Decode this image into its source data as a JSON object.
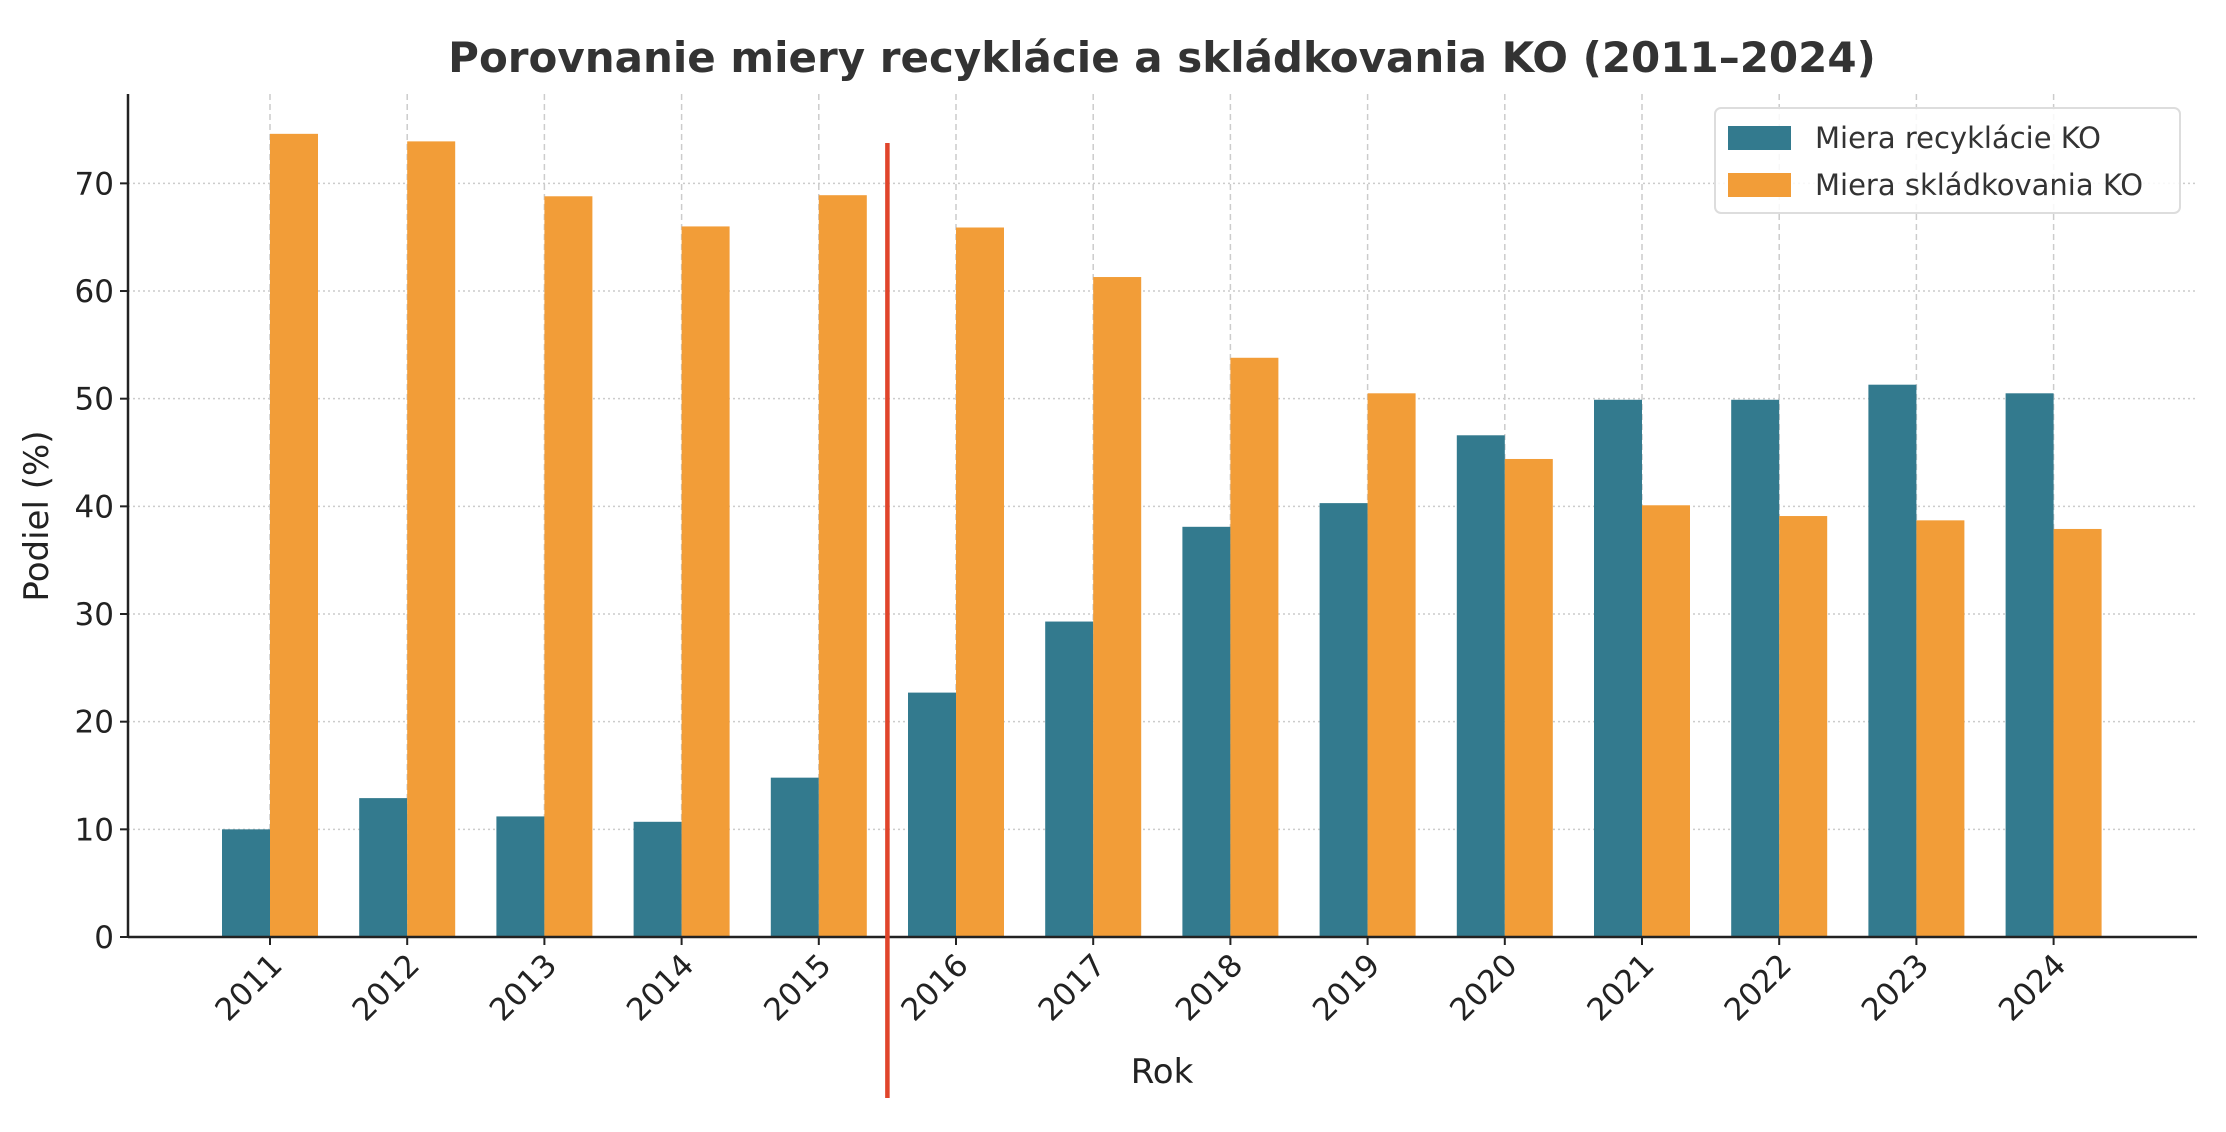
{
  "chart_data": {
    "type": "bar",
    "title": "Porovnanie miery recyklácie a skládkovania KO (2011–2024)",
    "xlabel": "Rok",
    "ylabel": "Podiel (%)",
    "ylim": [
      0,
      78.3
    ],
    "yticks": [
      0,
      10,
      20,
      30,
      40,
      50,
      60,
      70
    ],
    "grid": true,
    "legend_position": "top-right",
    "categories": [
      "2011",
      "2012",
      "2013",
      "2014",
      "2015",
      "2016",
      "2017",
      "2018",
      "2019",
      "2020",
      "2021",
      "2022",
      "2023",
      "2024"
    ],
    "series": [
      {
        "name": "Miera recyklácie KO",
        "color": "#337a8e",
        "values": [
          10.0,
          12.9,
          11.2,
          10.7,
          14.8,
          22.7,
          29.3,
          38.1,
          40.3,
          46.6,
          49.9,
          49.9,
          51.3,
          50.5
        ]
      },
      {
        "name": "Miera skládkovania KO",
        "color": "#f29d38",
        "values": [
          74.6,
          73.9,
          68.8,
          66.0,
          68.9,
          65.9,
          61.3,
          53.8,
          50.5,
          44.4,
          40.1,
          39.1,
          38.7,
          37.9
        ]
      }
    ],
    "annotations": [
      {
        "type": "vertical-line",
        "between": [
          "2015",
          "2016"
        ],
        "color": "#e0452b"
      }
    ]
  }
}
